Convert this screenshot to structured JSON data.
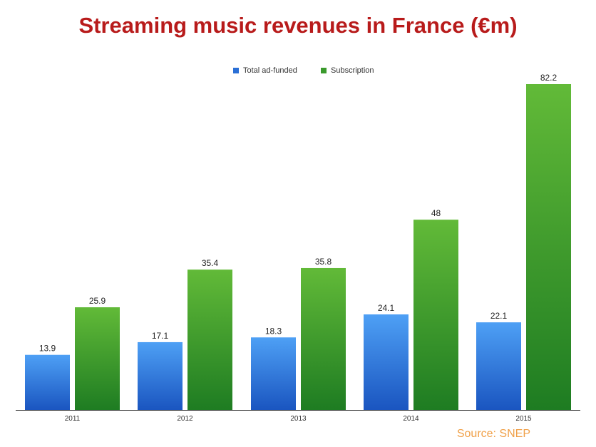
{
  "chart_data": {
    "type": "bar",
    "title": "Streaming music revenues in France (€m)",
    "categories": [
      "2011",
      "2012",
      "2013",
      "2014",
      "2015"
    ],
    "series": [
      {
        "name": "Total ad-funded",
        "values": [
          13.9,
          17.1,
          18.3,
          24.1,
          22.1
        ],
        "color_top": "#4ea0f5",
        "color_bottom": "#1a55c0"
      },
      {
        "name": "Subscription",
        "values": [
          25.9,
          35.4,
          35.8,
          48,
          82.2
        ],
        "color_top": "#62ba38",
        "color_bottom": "#1e7c22"
      }
    ],
    "value_labels": [
      [
        "13.9",
        "17.1",
        "18.3",
        "24.1",
        "22.1"
      ],
      [
        "25.9",
        "35.4",
        "35.8",
        "48",
        "82.2"
      ]
    ],
    "ylim": [
      0,
      82.2
    ],
    "grid": false,
    "legend_position": "top-center",
    "source": "Source: SNEP"
  },
  "colors": {
    "title": "#b81b1b",
    "source": "#f0a048",
    "axis": "#333333"
  }
}
